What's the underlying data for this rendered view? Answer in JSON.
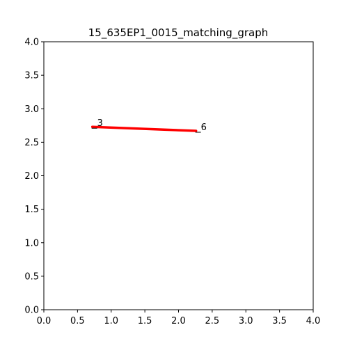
{
  "chart_data": {
    "type": "line",
    "title": "15_635EP1_0015_matching_graph",
    "xlabel": "",
    "ylabel": "",
    "xlim": [
      0.0,
      4.0
    ],
    "ylim": [
      0.0,
      4.0
    ],
    "grid": false,
    "x_ticks": [
      "0.0",
      "0.5",
      "1.0",
      "1.5",
      "2.0",
      "2.5",
      "3.0",
      "3.5",
      "4.0"
    ],
    "y_ticks": [
      "0.0",
      "0.5",
      "1.0",
      "1.5",
      "2.0",
      "2.5",
      "3.0",
      "3.5",
      "4.0"
    ],
    "nodes": [
      {
        "label": "3",
        "x": 0.72,
        "y": 2.73
      },
      {
        "label": "6",
        "x": 2.26,
        "y": 2.67
      }
    ],
    "edges": [
      {
        "from": 0,
        "to": 1,
        "color": "#ff0000"
      }
    ],
    "colors": {
      "edge": "#ff0000",
      "node_marker": "#000000",
      "axes": "#000000"
    }
  }
}
